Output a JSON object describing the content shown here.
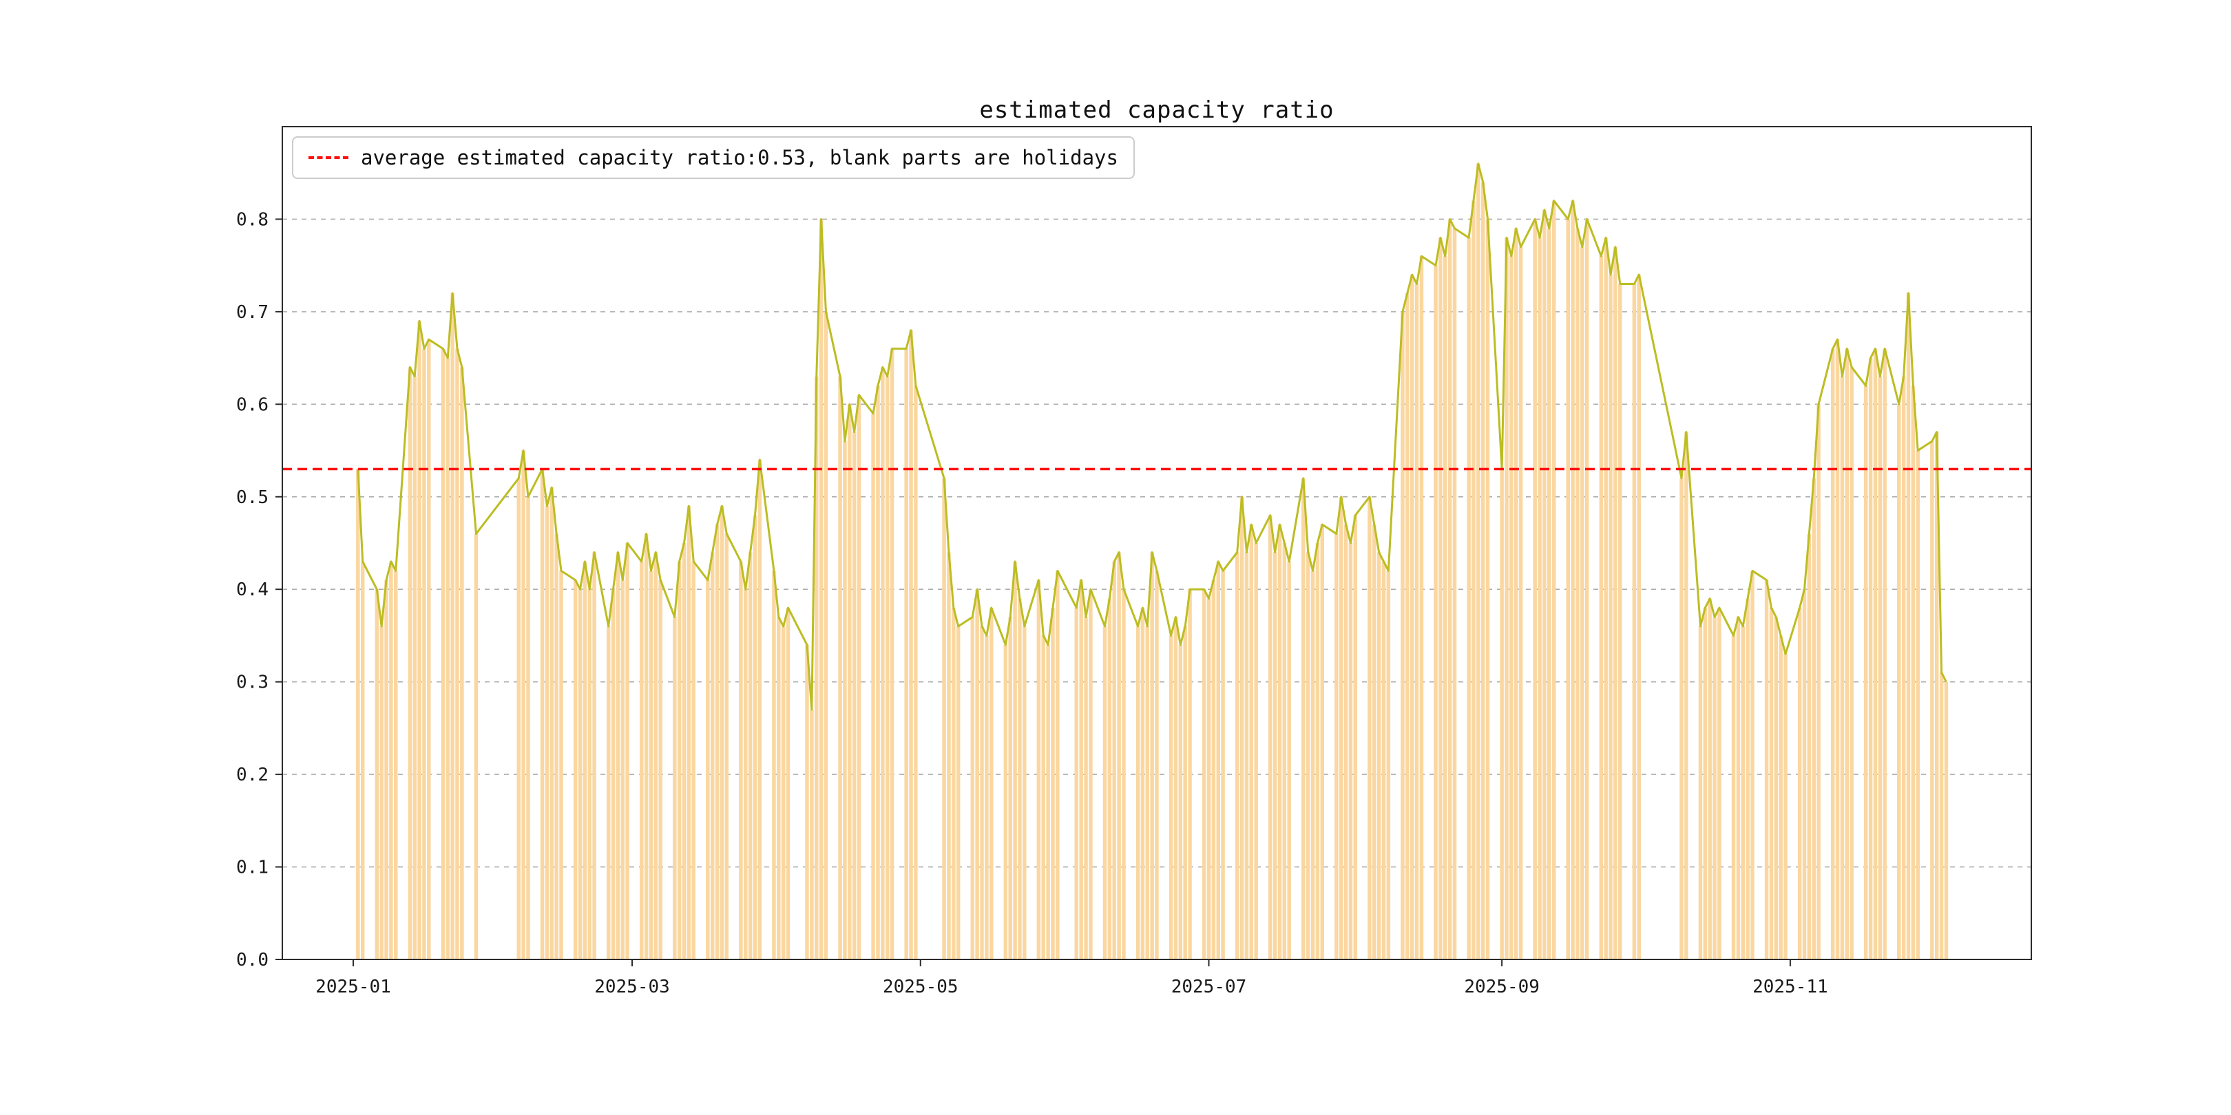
{
  "chart_data": {
    "type": "bar",
    "title": "estimated capacity ratio",
    "legend_label": "average estimated capacity ratio:0.53, blank parts are holidays",
    "average": 0.53,
    "ylim": [
      0,
      0.9
    ],
    "yticks": [
      0.0,
      0.1,
      0.2,
      0.3,
      0.4,
      0.5,
      0.6,
      0.7,
      0.8
    ],
    "ytick_labels": [
      "0.0",
      "0.1",
      "0.2",
      "0.3",
      "0.4",
      "0.5",
      "0.6",
      "0.7",
      "0.8"
    ],
    "xticks": [
      {
        "date": "2025-01-01",
        "label": "2025-01"
      },
      {
        "date": "2025-03-01",
        "label": "2025-03"
      },
      {
        "date": "2025-05-01",
        "label": "2025-05"
      },
      {
        "date": "2025-07-01",
        "label": "2025-07"
      },
      {
        "date": "2025-09-01",
        "label": "2025-09"
      },
      {
        "date": "2025-11-01",
        "label": "2025-11"
      }
    ],
    "x_domain": {
      "start": "2024-12-17",
      "end": "2025-12-22"
    },
    "grid": true,
    "legend_position": "upper-left",
    "bar_width_days": 0.8,
    "colors": {
      "bar": "#FAD7A0",
      "line": "#BCBD22",
      "average": "#FF1111",
      "grid": "#ADADAD",
      "frame": "#2B2B2B"
    },
    "points": [
      [
        "2025-01-02",
        0.53
      ],
      [
        "2025-01-03",
        0.43
      ],
      [
        "2025-01-06",
        0.4
      ],
      [
        "2025-01-07",
        0.36
      ],
      [
        "2025-01-08",
        0.41
      ],
      [
        "2025-01-09",
        0.43
      ],
      [
        "2025-01-10",
        0.42
      ],
      [
        "2025-01-13",
        0.64
      ],
      [
        "2025-01-14",
        0.63
      ],
      [
        "2025-01-15",
        0.69
      ],
      [
        "2025-01-16",
        0.66
      ],
      [
        "2025-01-17",
        0.67
      ],
      [
        "2025-01-20",
        0.66
      ],
      [
        "2025-01-21",
        0.65
      ],
      [
        "2025-01-22",
        0.72
      ],
      [
        "2025-01-23",
        0.66
      ],
      [
        "2025-01-24",
        0.64
      ],
      [
        "2025-01-27",
        0.46
      ],
      [
        "2025-02-05",
        0.52
      ],
      [
        "2025-02-06",
        0.55
      ],
      [
        "2025-02-07",
        0.5
      ],
      [
        "2025-02-10",
        0.53
      ],
      [
        "2025-02-11",
        0.49
      ],
      [
        "2025-02-12",
        0.51
      ],
      [
        "2025-02-13",
        0.46
      ],
      [
        "2025-02-14",
        0.42
      ],
      [
        "2025-02-17",
        0.41
      ],
      [
        "2025-02-18",
        0.4
      ],
      [
        "2025-02-19",
        0.43
      ],
      [
        "2025-02-20",
        0.4
      ],
      [
        "2025-02-21",
        0.44
      ],
      [
        "2025-02-24",
        0.36
      ],
      [
        "2025-02-25",
        0.4
      ],
      [
        "2025-02-26",
        0.44
      ],
      [
        "2025-02-27",
        0.41
      ],
      [
        "2025-02-28",
        0.45
      ],
      [
        "2025-03-03",
        0.43
      ],
      [
        "2025-03-04",
        0.46
      ],
      [
        "2025-03-05",
        0.42
      ],
      [
        "2025-03-06",
        0.44
      ],
      [
        "2025-03-07",
        0.41
      ],
      [
        "2025-03-10",
        0.37
      ],
      [
        "2025-03-11",
        0.43
      ],
      [
        "2025-03-12",
        0.45
      ],
      [
        "2025-03-13",
        0.49
      ],
      [
        "2025-03-14",
        0.43
      ],
      [
        "2025-03-17",
        0.41
      ],
      [
        "2025-03-18",
        0.44
      ],
      [
        "2025-03-19",
        0.47
      ],
      [
        "2025-03-20",
        0.49
      ],
      [
        "2025-03-21",
        0.46
      ],
      [
        "2025-03-24",
        0.43
      ],
      [
        "2025-03-25",
        0.4
      ],
      [
        "2025-03-26",
        0.44
      ],
      [
        "2025-03-27",
        0.48
      ],
      [
        "2025-03-28",
        0.54
      ],
      [
        "2025-03-31",
        0.42
      ],
      [
        "2025-04-01",
        0.37
      ],
      [
        "2025-04-02",
        0.36
      ],
      [
        "2025-04-03",
        0.38
      ],
      [
        "2025-04-07",
        0.34
      ],
      [
        "2025-04-08",
        0.27
      ],
      [
        "2025-04-09",
        0.63
      ],
      [
        "2025-04-10",
        0.8
      ],
      [
        "2025-04-11",
        0.7
      ],
      [
        "2025-04-14",
        0.63
      ],
      [
        "2025-04-15",
        0.56
      ],
      [
        "2025-04-16",
        0.6
      ],
      [
        "2025-04-17",
        0.57
      ],
      [
        "2025-04-18",
        0.61
      ],
      [
        "2025-04-21",
        0.59
      ],
      [
        "2025-04-22",
        0.62
      ],
      [
        "2025-04-23",
        0.64
      ],
      [
        "2025-04-24",
        0.63
      ],
      [
        "2025-04-25",
        0.66
      ],
      [
        "2025-04-28",
        0.66
      ],
      [
        "2025-04-29",
        0.68
      ],
      [
        "2025-04-30",
        0.62
      ],
      [
        "2025-05-06",
        0.52
      ],
      [
        "2025-05-07",
        0.44
      ],
      [
        "2025-05-08",
        0.38
      ],
      [
        "2025-05-09",
        0.36
      ],
      [
        "2025-05-12",
        0.37
      ],
      [
        "2025-05-13",
        0.4
      ],
      [
        "2025-05-14",
        0.36
      ],
      [
        "2025-05-15",
        0.35
      ],
      [
        "2025-05-16",
        0.38
      ],
      [
        "2025-05-19",
        0.34
      ],
      [
        "2025-05-20",
        0.37
      ],
      [
        "2025-05-21",
        0.43
      ],
      [
        "2025-05-22",
        0.39
      ],
      [
        "2025-05-23",
        0.36
      ],
      [
        "2025-05-26",
        0.41
      ],
      [
        "2025-05-27",
        0.35
      ],
      [
        "2025-05-28",
        0.34
      ],
      [
        "2025-05-29",
        0.38
      ],
      [
        "2025-05-30",
        0.42
      ],
      [
        "2025-06-03",
        0.38
      ],
      [
        "2025-06-04",
        0.41
      ],
      [
        "2025-06-05",
        0.37
      ],
      [
        "2025-06-06",
        0.4
      ],
      [
        "2025-06-09",
        0.36
      ],
      [
        "2025-06-10",
        0.39
      ],
      [
        "2025-06-11",
        0.43
      ],
      [
        "2025-06-12",
        0.44
      ],
      [
        "2025-06-13",
        0.4
      ],
      [
        "2025-06-16",
        0.36
      ],
      [
        "2025-06-17",
        0.38
      ],
      [
        "2025-06-18",
        0.36
      ],
      [
        "2025-06-19",
        0.44
      ],
      [
        "2025-06-20",
        0.42
      ],
      [
        "2025-06-23",
        0.35
      ],
      [
        "2025-06-24",
        0.37
      ],
      [
        "2025-06-25",
        0.34
      ],
      [
        "2025-06-26",
        0.36
      ],
      [
        "2025-06-27",
        0.4
      ],
      [
        "2025-06-30",
        0.4
      ],
      [
        "2025-07-01",
        0.39
      ],
      [
        "2025-07-02",
        0.41
      ],
      [
        "2025-07-03",
        0.43
      ],
      [
        "2025-07-04",
        0.42
      ],
      [
        "2025-07-07",
        0.44
      ],
      [
        "2025-07-08",
        0.5
      ],
      [
        "2025-07-09",
        0.44
      ],
      [
        "2025-07-10",
        0.47
      ],
      [
        "2025-07-11",
        0.45
      ],
      [
        "2025-07-14",
        0.48
      ],
      [
        "2025-07-15",
        0.44
      ],
      [
        "2025-07-16",
        0.47
      ],
      [
        "2025-07-17",
        0.45
      ],
      [
        "2025-07-18",
        0.43
      ],
      [
        "2025-07-21",
        0.52
      ],
      [
        "2025-07-22",
        0.44
      ],
      [
        "2025-07-23",
        0.42
      ],
      [
        "2025-07-24",
        0.45
      ],
      [
        "2025-07-25",
        0.47
      ],
      [
        "2025-07-28",
        0.46
      ],
      [
        "2025-07-29",
        0.5
      ],
      [
        "2025-07-30",
        0.47
      ],
      [
        "2025-07-31",
        0.45
      ],
      [
        "2025-08-01",
        0.48
      ],
      [
        "2025-08-04",
        0.5
      ],
      [
        "2025-08-05",
        0.47
      ],
      [
        "2025-08-06",
        0.44
      ],
      [
        "2025-08-07",
        0.43
      ],
      [
        "2025-08-08",
        0.42
      ],
      [
        "2025-08-11",
        0.7
      ],
      [
        "2025-08-12",
        0.72
      ],
      [
        "2025-08-13",
        0.74
      ],
      [
        "2025-08-14",
        0.73
      ],
      [
        "2025-08-15",
        0.76
      ],
      [
        "2025-08-18",
        0.75
      ],
      [
        "2025-08-19",
        0.78
      ],
      [
        "2025-08-20",
        0.76
      ],
      [
        "2025-08-21",
        0.8
      ],
      [
        "2025-08-22",
        0.79
      ],
      [
        "2025-08-25",
        0.78
      ],
      [
        "2025-08-26",
        0.82
      ],
      [
        "2025-08-27",
        0.86
      ],
      [
        "2025-08-28",
        0.84
      ],
      [
        "2025-08-29",
        0.8
      ],
      [
        "2025-09-01",
        0.53
      ],
      [
        "2025-09-02",
        0.78
      ],
      [
        "2025-09-03",
        0.76
      ],
      [
        "2025-09-04",
        0.79
      ],
      [
        "2025-09-05",
        0.77
      ],
      [
        "2025-09-08",
        0.8
      ],
      [
        "2025-09-09",
        0.78
      ],
      [
        "2025-09-10",
        0.81
      ],
      [
        "2025-09-11",
        0.79
      ],
      [
        "2025-09-12",
        0.82
      ],
      [
        "2025-09-15",
        0.8
      ],
      [
        "2025-09-16",
        0.82
      ],
      [
        "2025-09-17",
        0.79
      ],
      [
        "2025-09-18",
        0.77
      ],
      [
        "2025-09-19",
        0.8
      ],
      [
        "2025-09-22",
        0.76
      ],
      [
        "2025-09-23",
        0.78
      ],
      [
        "2025-09-24",
        0.74
      ],
      [
        "2025-09-25",
        0.77
      ],
      [
        "2025-09-26",
        0.73
      ],
      [
        "2025-09-29",
        0.73
      ],
      [
        "2025-09-30",
        0.74
      ],
      [
        "2025-10-09",
        0.52
      ],
      [
        "2025-10-10",
        0.57
      ],
      [
        "2025-10-13",
        0.36
      ],
      [
        "2025-10-14",
        0.38
      ],
      [
        "2025-10-15",
        0.39
      ],
      [
        "2025-10-16",
        0.37
      ],
      [
        "2025-10-17",
        0.38
      ],
      [
        "2025-10-20",
        0.35
      ],
      [
        "2025-10-21",
        0.37
      ],
      [
        "2025-10-22",
        0.36
      ],
      [
        "2025-10-23",
        0.39
      ],
      [
        "2025-10-24",
        0.42
      ],
      [
        "2025-10-27",
        0.41
      ],
      [
        "2025-10-28",
        0.38
      ],
      [
        "2025-10-29",
        0.37
      ],
      [
        "2025-10-30",
        0.35
      ],
      [
        "2025-10-31",
        0.33
      ],
      [
        "2025-11-03",
        0.38
      ],
      [
        "2025-11-04",
        0.4
      ],
      [
        "2025-11-05",
        0.46
      ],
      [
        "2025-11-06",
        0.52
      ],
      [
        "2025-11-07",
        0.6
      ],
      [
        "2025-11-10",
        0.66
      ],
      [
        "2025-11-11",
        0.67
      ],
      [
        "2025-11-12",
        0.63
      ],
      [
        "2025-11-13",
        0.66
      ],
      [
        "2025-11-14",
        0.64
      ],
      [
        "2025-11-17",
        0.62
      ],
      [
        "2025-11-18",
        0.65
      ],
      [
        "2025-11-19",
        0.66
      ],
      [
        "2025-11-20",
        0.63
      ],
      [
        "2025-11-21",
        0.66
      ],
      [
        "2025-11-24",
        0.6
      ],
      [
        "2025-11-25",
        0.63
      ],
      [
        "2025-11-26",
        0.72
      ],
      [
        "2025-11-27",
        0.62
      ],
      [
        "2025-11-28",
        0.55
      ],
      [
        "2025-12-01",
        0.56
      ],
      [
        "2025-12-02",
        0.57
      ],
      [
        "2025-12-03",
        0.31
      ],
      [
        "2025-12-04",
        0.3
      ]
    ]
  }
}
